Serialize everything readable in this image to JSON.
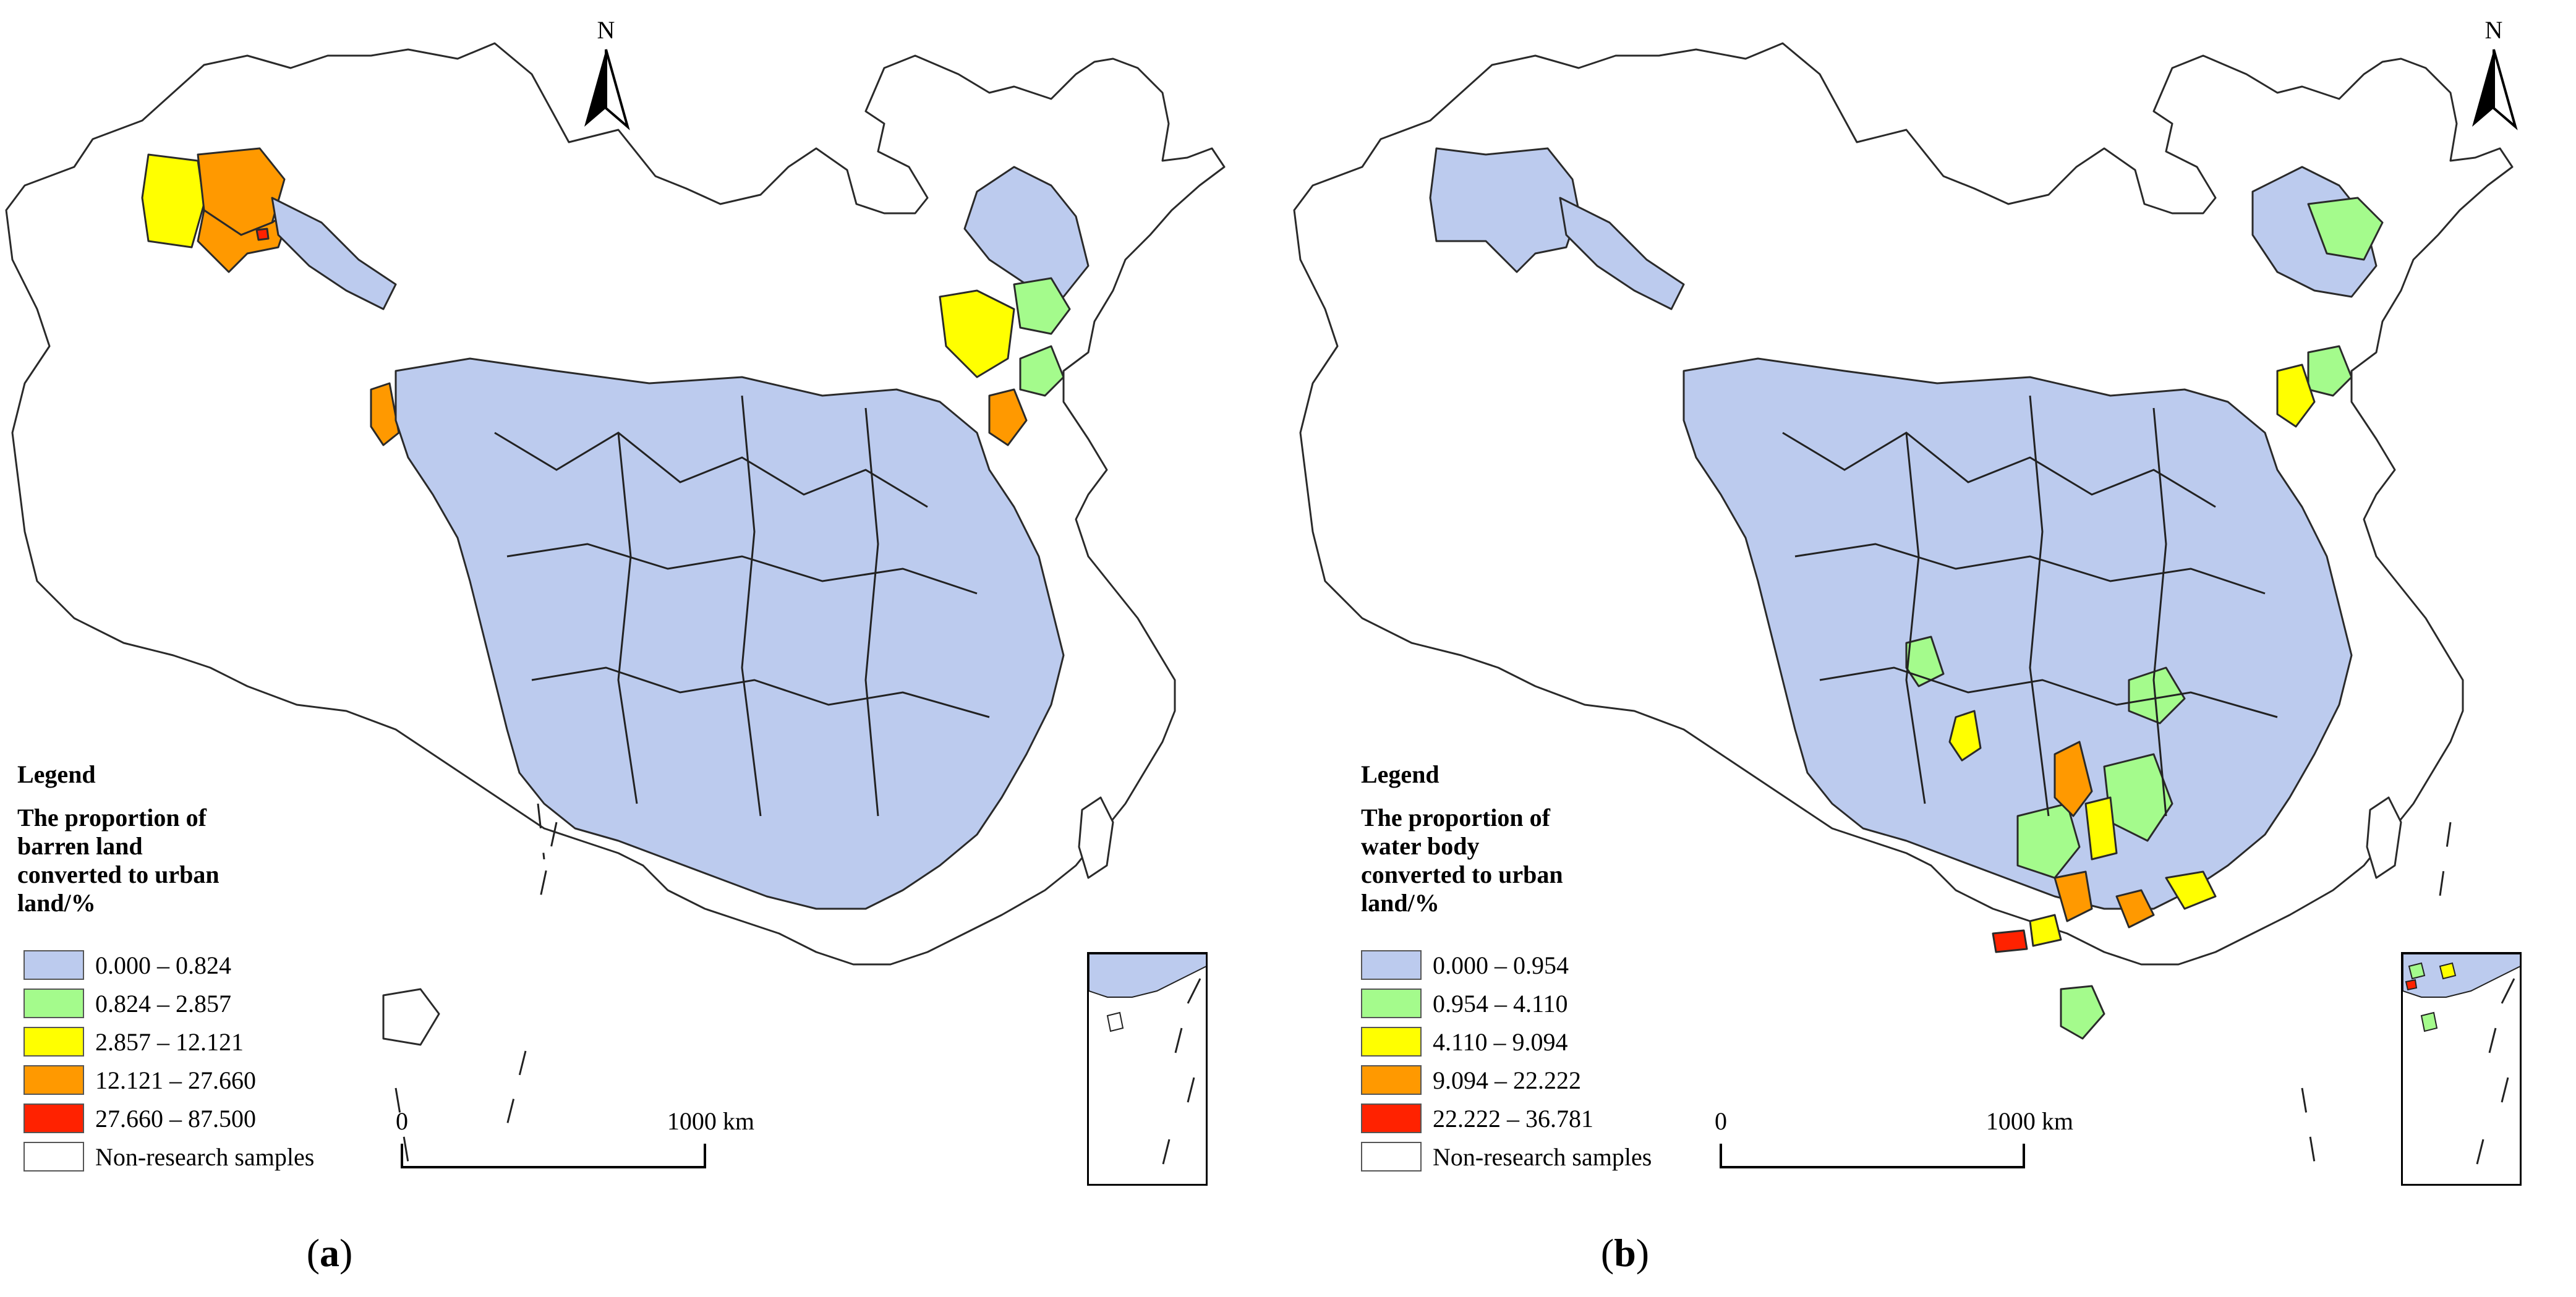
{
  "panels": {
    "a": {
      "caption_open": "(",
      "caption_letter": "a",
      "caption_close": ")",
      "legend_title": "Legend",
      "legend_heading_lines": [
        "The proportion of",
        "barren land",
        "converted to urban",
        "land/%"
      ],
      "legend_items": [
        {
          "label": "0.000 – 0.824",
          "color": "#bccbee"
        },
        {
          "label": "0.824 – 2.857",
          "color": "#a4fb8c"
        },
        {
          "label": "2.857 – 12.121",
          "color": "#ffff00"
        },
        {
          "label": "12.121 – 27.660",
          "color": "#ff9900"
        },
        {
          "label": "27.660 – 87.500",
          "color": "#ff2200"
        },
        {
          "label": "Non-research samples",
          "color": "#ffffff"
        }
      ],
      "north_label": "N",
      "scale_zero": "0",
      "scale_end": "1000 km"
    },
    "b": {
      "caption_open": "(",
      "caption_letter": "b",
      "caption_close": ")",
      "legend_title": "Legend",
      "legend_heading_lines": [
        "The proportion of",
        "water body",
        "converted to urban",
        "land/%"
      ],
      "legend_items": [
        {
          "label": "0.000 – 0.954",
          "color": "#bccbee"
        },
        {
          "label": "0.954 – 4.110",
          "color": "#a4fb8c"
        },
        {
          "label": "4.110 – 9.094",
          "color": "#ffff00"
        },
        {
          "label": "9.094 – 22.222",
          "color": "#ff9900"
        },
        {
          "label": "22.222 – 36.781",
          "color": "#ff2200"
        },
        {
          "label": "Non-research samples",
          "color": "#ffffff"
        }
      ],
      "north_label": "N",
      "scale_zero": "0",
      "scale_end": "1000 km"
    }
  }
}
